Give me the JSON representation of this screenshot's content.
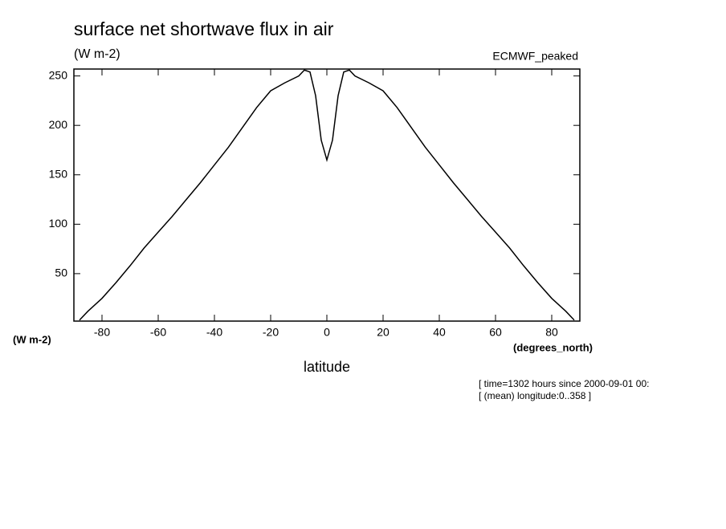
{
  "chart_data": {
    "type": "line",
    "title": "surface net shortwave flux in air",
    "subtitle": "(W m-2)",
    "dataset_label": "ECMWF_peaked",
    "y_unit_label": "(W m-2)",
    "x_unit_label": "(degrees_north)",
    "x_label": "latitude",
    "footnotes": [
      "[ time=1302 hours since 2000-09-01 00:",
      "[ (mean) longitude:0..358 ]"
    ],
    "x": [
      -88,
      -85,
      -80,
      -75,
      -70,
      -65,
      -60,
      -55,
      -50,
      -45,
      -40,
      -35,
      -30,
      -25,
      -20,
      -15,
      -10,
      -8,
      -6,
      -4,
      -2,
      0,
      2,
      4,
      6,
      8,
      10,
      15,
      20,
      25,
      30,
      35,
      40,
      45,
      50,
      55,
      60,
      65,
      70,
      75,
      80,
      85,
      88
    ],
    "series": [
      {
        "color": "#000000",
        "values": [
          3,
          12,
          25,
          41,
          58,
          76,
          92,
          108,
          125,
          142,
          160,
          178,
          198,
          218,
          235,
          243,
          250,
          256,
          254,
          230,
          185,
          165,
          185,
          230,
          254,
          256,
          250,
          243,
          235,
          218,
          198,
          178,
          160,
          142,
          125,
          108,
          92,
          76,
          58,
          41,
          25,
          12,
          3
        ]
      }
    ],
    "xlim": [
      -90,
      90
    ],
    "ylim": [
      2,
      257
    ],
    "xticks": [
      -80,
      -60,
      -40,
      -20,
      0,
      20,
      40,
      60,
      80
    ],
    "yticks": [
      50,
      100,
      150,
      200,
      250
    ]
  }
}
